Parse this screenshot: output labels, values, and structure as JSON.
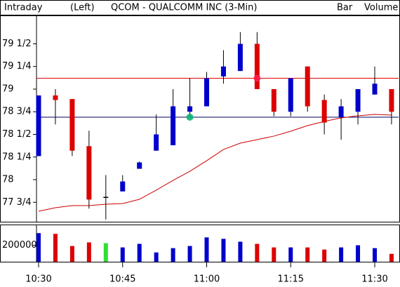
{
  "chart_data": {
    "type": "candlestick",
    "period": "Intraday",
    "axis_side": "(Left)",
    "title": "QCOM - QUALCOMM INC (3-Min)",
    "style": "Bar",
    "indicator": "Volume",
    "indicator_color": "#33dd33",
    "categories": [
      "10:30",
      null,
      null,
      null,
      null,
      "10:45",
      null,
      null,
      null,
      null,
      "11:00",
      null,
      null,
      null,
      null,
      "11:15",
      null,
      null,
      null,
      null,
      "11:30",
      null
    ],
    "open": [
      78.26,
      78.93,
      78.89,
      78.37,
      77.81,
      77.87,
      78.12,
      78.32,
      78.38,
      78.75,
      78.81,
      79.14,
      79.2,
      79.5,
      79.0,
      78.75,
      79.25,
      78.88,
      78.69,
      78.75,
      78.94,
      79.0
    ],
    "high": [
      78.93,
      79.0,
      78.89,
      78.54,
      78.05,
      78.05,
      78.2,
      78.72,
      79.0,
      79.12,
      79.19,
      79.43,
      79.63,
      79.63,
      79.0,
      79.12,
      79.25,
      78.94,
      78.89,
      79.0,
      79.25,
      79.0
    ],
    "low": [
      78.26,
      78.61,
      78.26,
      77.68,
      77.56,
      77.87,
      78.12,
      78.32,
      78.38,
      78.7,
      78.81,
      79.06,
      79.2,
      79.0,
      78.7,
      78.7,
      78.75,
      78.5,
      78.44,
      78.61,
      78.94,
      78.61
    ],
    "close": [
      78.93,
      78.88,
      78.32,
      77.78,
      77.81,
      77.98,
      78.19,
      78.5,
      78.81,
      78.81,
      79.12,
      79.25,
      79.5,
      79.0,
      78.75,
      79.12,
      78.81,
      78.63,
      78.81,
      79.0,
      79.06,
      78.75
    ],
    "up_color": "#0000cc",
    "down_color": "#dd0000",
    "flat_color": "#000000",
    "moving_average": {
      "color": "#cc0000",
      "values": [
        77.651,
        77.69,
        77.713,
        77.713,
        77.729,
        77.736,
        77.783,
        77.884,
        77.992,
        78.093,
        78.209,
        78.333,
        78.403,
        78.442,
        78.481,
        78.535,
        78.597,
        78.643,
        78.682,
        78.705,
        78.721,
        78.713
      ]
    },
    "hlines": [
      {
        "value": 79.12,
        "color": "#dd0000"
      },
      {
        "value": 78.69,
        "color": "#000060"
      }
    ],
    "markers": [
      {
        "index": 9,
        "value": 78.69,
        "color": "#00b070"
      },
      {
        "index": 13,
        "value": 79.12,
        "color": "#ff2050"
      }
    ],
    "ylim": [
      77.535,
      79.806
    ],
    "yticks": [
      {
        "value": 77.75,
        "label": "77 3/4"
      },
      78,
      {
        "value": 78.25,
        "label": "78 1/4"
      },
      {
        "value": 78.5,
        "label": "78 1/2"
      },
      {
        "value": 78.75,
        "label": "78 3/4"
      },
      79,
      {
        "value": 79.25,
        "label": "79 1/4"
      },
      {
        "value": 79.5,
        "label": "79 1/2"
      }
    ],
    "volume": {
      "values": [
        347800,
        339000,
        191300,
        234800,
        226000,
        173900,
        217400,
        113000,
        165200,
        191300,
        295700,
        278300,
        243500,
        217400,
        173900,
        173900,
        173900,
        147800,
        173900,
        200000,
        165200,
        95700
      ],
      "colors": [
        "#0000cc",
        "#dd0000",
        "#dd0000",
        "#dd0000",
        "#33dd33",
        "#0000cc",
        "#0000cc",
        "#0000cc",
        "#0000cc",
        "#0000cc",
        "#0000cc",
        "#0000cc",
        "#0000cc",
        "#dd0000",
        "#dd0000",
        "#0000cc",
        "#dd0000",
        "#dd0000",
        "#0000cc",
        "#0000cc",
        "#0000cc",
        "#dd0000"
      ],
      "ylim": [
        0,
        434800
      ],
      "yticks": [
        200000
      ]
    }
  }
}
